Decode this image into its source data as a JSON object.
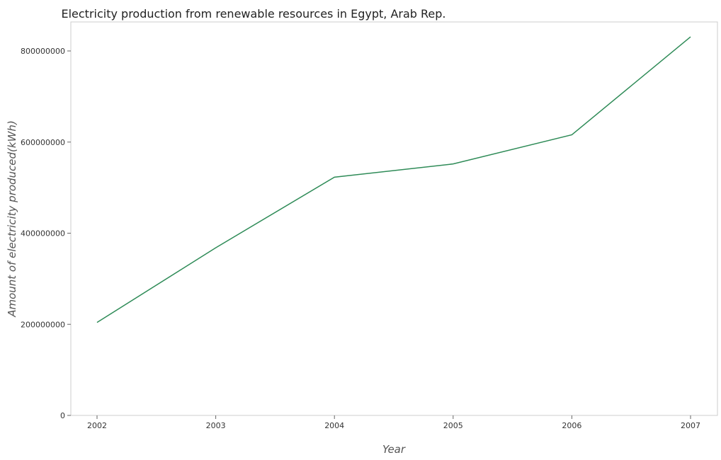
{
  "chart_data": {
    "type": "line",
    "title": "Electricity production from renewable resources in Egypt, Arab Rep.",
    "xlabel": "Year",
    "ylabel": "Amount of electricity produced(kWh)",
    "categories": [
      "2002",
      "2003",
      "2004",
      "2005",
      "2006",
      "2007"
    ],
    "series": [
      {
        "values": [
          204000000,
          368000000,
          523000000,
          552000000,
          616000000,
          831000000
        ]
      }
    ],
    "y_ticks": [
      0,
      200000000,
      400000000,
      600000000,
      800000000
    ],
    "y_tick_labels": [
      "0",
      "200000000",
      "400000000",
      "600000000",
      "800000000"
    ],
    "ylim": [
      0,
      870000000
    ],
    "grid": false,
    "legend": "none",
    "colors": {
      "series": "#2e8b57",
      "frame": "#cccccc"
    }
  }
}
